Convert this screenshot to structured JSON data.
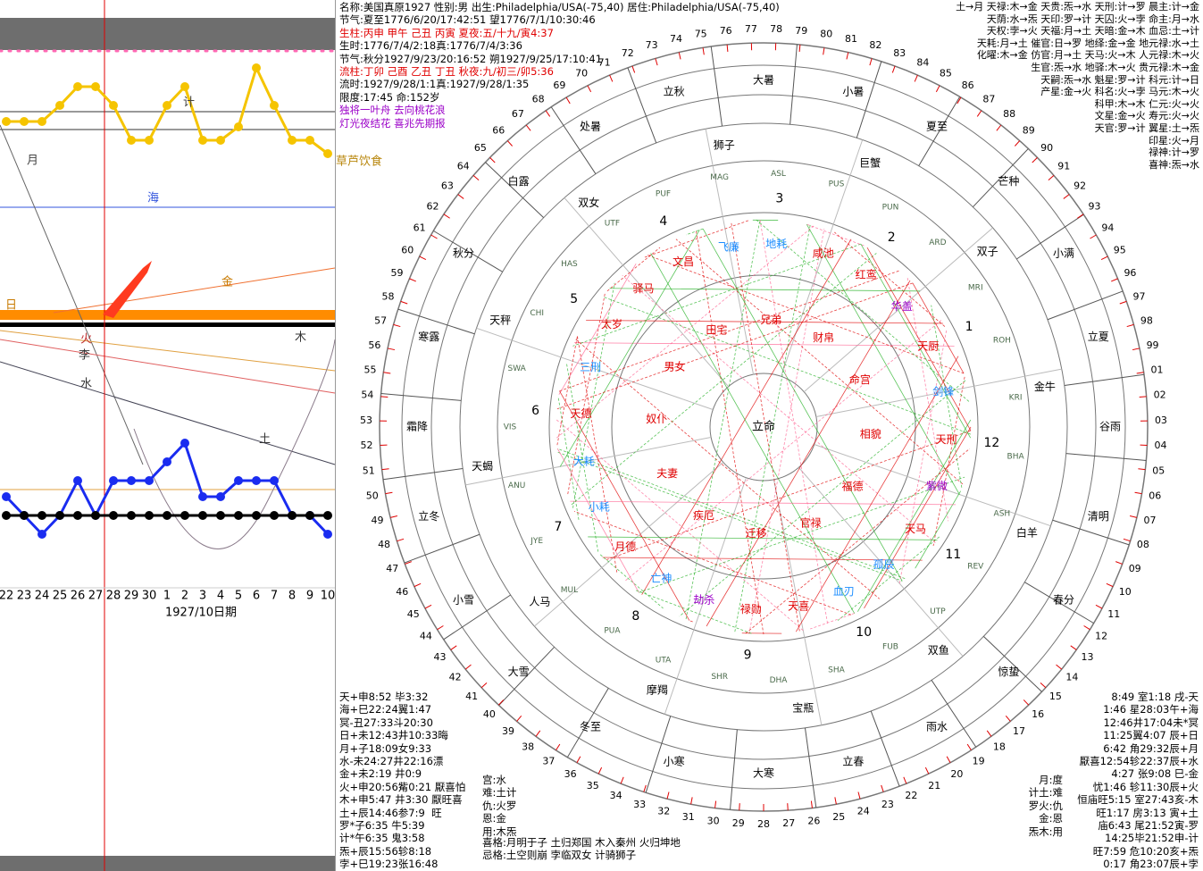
{
  "left_chart": {
    "type": "line",
    "categories": [
      "22",
      "23",
      "24",
      "25",
      "26",
      "27",
      "28",
      "29",
      "30",
      "1",
      "2",
      "3",
      "4",
      "5",
      "6",
      "7",
      "8",
      "9",
      "10"
    ],
    "xlabel": "1927/10日期",
    "ylim": [
      0,
      100
    ],
    "series": [
      {
        "color": "#f5c400",
        "values": [
          84,
          84,
          84,
          87,
          90.5,
          90.5,
          87,
          80.5,
          80.5,
          87,
          90.5,
          80.5,
          80.5,
          83,
          94,
          87,
          80.5,
          80.5,
          78
        ]
      },
      {
        "color": "#1a2cf0",
        "values": [
          14,
          10.5,
          7,
          10.5,
          17,
          10.5,
          17,
          17,
          17,
          20.5,
          24,
          14,
          14,
          17,
          17,
          17,
          10.5,
          10.5,
          7
        ]
      },
      {
        "color": "#000000",
        "values": [
          10.5,
          10.5,
          10.5,
          10.5,
          10.5,
          10.5,
          10.5,
          10.5,
          10.5,
          10.5,
          10.5,
          10.5,
          10.5,
          10.5,
          10.5,
          10.5,
          10.5,
          10.5,
          10.5
        ]
      }
    ],
    "annotations": [
      "月",
      "计",
      "海",
      "金",
      "日",
      "木",
      "火",
      "李",
      "水",
      "土",
      "草芦饮食"
    ]
  },
  "header": {
    "lines": [
      {
        "text": "名称:美国真原1927 性别:男 出生:Philadelphia/USA(-75,40) 居住:Philadelphia/USA(-75,40)",
        "color": "#000000"
      },
      {
        "text": "节气:夏至1776/6/20/17:42:51 望1776/7/1/10:30:46",
        "color": "#000000"
      },
      {
        "text": "生柱:丙申 甲午 己丑 丙寅 夏夜:五/十九/寅4:37",
        "color": "#e00000"
      },
      {
        "text": "生时:1776/7/4/2:18真:1776/7/4/3:36",
        "color": "#000000"
      },
      {
        "text": "节气:秋分1927/9/23/20:16:52 朔1927/9/25/17:10:41",
        "color": "#000000"
      },
      {
        "text": "流柱:丁卯 己酉 乙丑 丁丑 秋夜:九/初三/卯5:36",
        "color": "#e00000"
      },
      {
        "text": "流时:1927/9/28/1:1真:1927/9/28/1:35",
        "color": "#000000"
      },
      {
        "text": "限度:17:45 命:152岁",
        "color": "#000000"
      },
      {
        "text": "独将一叶舟 去向桃花浪",
        "color": "#9b00c8"
      },
      {
        "text": "灯光夜结花 喜兆先期报",
        "color": "#9b00c8"
      }
    ]
  },
  "top_right": {
    "lines": [
      "土→月 天禄:木→金 天贵:炁→水 天刑:计→罗 晨主:计→金",
      "天荫:水→炁 天印:罗→计 天囚:火→孛 命主:月→水",
      "天权:孛→火 天福:月→土 天暗:金→木 血忌:土→计",
      "天耗:月→土 催官:日→罗 地绎:金→金 地元禄:水→土",
      "化曜:木→金 仿官:月→土 天马:火→木 人元禄:木→火",
      "生官:炁→水 地驿:木→火 贵元禄:木→金",
      "天嗣:炁→水 魁星:罗→计 科元:计→日",
      "产星:金→火 科名:火→孛 马元:木→火",
      "科甲:木→木 仁元:火→火",
      "文星:金→火 寿元:火→火",
      "天官:罗→计 翼星:土→炁",
      "印星:火→月",
      "禄神:计→罗",
      "喜神:炁→水"
    ]
  },
  "wheel": {
    "degrees": [
      "28",
      "29",
      "30",
      "31",
      "32",
      "33",
      "34",
      "35",
      "36",
      "37",
      "38",
      "39",
      "40",
      "41",
      "42",
      "43",
      "44",
      "45",
      "46",
      "47",
      "48",
      "49",
      "50",
      "51",
      "52",
      "53",
      "54",
      "55",
      "56",
      "57",
      "58",
      "59",
      "60",
      "61",
      "62",
      "63",
      "64",
      "65",
      "66",
      "67",
      "68",
      "69",
      "70",
      "71",
      "72",
      "73",
      "74",
      "75",
      "76",
      "77",
      "78",
      "79",
      "80",
      "81",
      "82",
      "83",
      "84",
      "85",
      "86",
      "87",
      "88",
      "89",
      "90",
      "91",
      "92",
      "93",
      "94",
      "95",
      "96",
      "97",
      "98",
      "99",
      "01",
      "02",
      "03",
      "04",
      "05",
      "06",
      "07",
      "08",
      "09",
      "10",
      "11",
      "12",
      "13",
      "14",
      "15",
      "16",
      "17",
      "18",
      "19",
      "20",
      "21",
      "22",
      "23",
      "24",
      "25",
      "26",
      "27"
    ],
    "terms": [
      "冬至",
      "小寒",
      "大寒",
      "立春",
      "雨水",
      "惊蛰",
      "春分",
      "清明",
      "谷雨",
      "立夏",
      "小满",
      "芒种",
      "夏至",
      "小暑",
      "大暑",
      "立秋",
      "处暑",
      "白露",
      "秋分",
      "寒露",
      "霜降",
      "立冬",
      "小雪",
      "大雪"
    ],
    "nakshatras": [
      "ASH",
      "BHA",
      "KRI",
      "ROH",
      "MRI",
      "ARD",
      "PUN",
      "PUS",
      "ASL",
      "MAG",
      "PUF",
      "UTF",
      "HAS",
      "CHI",
      "SWA",
      "VIS",
      "ANU",
      "JYE",
      "MUL",
      "PUA",
      "UTA",
      "SHR",
      "DHA",
      "SHA",
      "FUB",
      "UTP",
      "REV"
    ],
    "signs": [
      "狮子",
      "巨蟹",
      "双子",
      "金牛",
      "白羊",
      "双鱼",
      "宝瓶",
      "摩羯",
      "人马",
      "天蝎",
      "天秤",
      "双女"
    ],
    "houses": [
      1,
      2,
      3,
      4,
      5,
      6,
      7,
      8,
      9,
      10,
      11,
      12
    ],
    "stars": [
      {
        "name": "天刑",
        "color": "#e00000"
      },
      {
        "name": "紫微",
        "color": "#9b00c8"
      },
      {
        "name": "天马",
        "color": "#e00000"
      },
      {
        "name": "孤辰",
        "color": "#1a8cff"
      },
      {
        "name": "血刃",
        "color": "#1a8cff"
      },
      {
        "name": "天喜",
        "color": "#e00000"
      },
      {
        "name": "禄勋",
        "color": "#e00000"
      },
      {
        "name": "劫杀",
        "color": "#9b00c8"
      },
      {
        "name": "亡神",
        "color": "#1a8cff"
      },
      {
        "name": "月德",
        "color": "#e00000"
      },
      {
        "name": "小耗",
        "color": "#1a8cff"
      },
      {
        "name": "大耗",
        "color": "#1a8cff"
      },
      {
        "name": "天德",
        "color": "#e00000"
      },
      {
        "name": "三刑",
        "color": "#1a8cff"
      },
      {
        "name": "太岁",
        "color": "#e00000"
      },
      {
        "name": "驿马",
        "color": "#e00000"
      },
      {
        "name": "文昌",
        "color": "#e00000"
      },
      {
        "name": "飞廉",
        "color": "#1a8cff"
      },
      {
        "name": "地耗",
        "color": "#1a8cff"
      },
      {
        "name": "咸池",
        "color": "#e00000"
      },
      {
        "name": "红鸾",
        "color": "#e00000"
      },
      {
        "name": "华盖",
        "color": "#9b00c8"
      },
      {
        "name": "天厨",
        "color": "#e00000"
      },
      {
        "name": "剑锋",
        "color": "#1a8cff"
      }
    ],
    "palaces": [
      "命宫",
      "财帛",
      "兄弟",
      "田宅",
      "男女",
      "奴仆",
      "夫妻",
      "疾厄",
      "迁移",
      "官禄",
      "福德",
      "相貌"
    ],
    "center": "立命"
  },
  "bottom_left": {
    "lines": [
      "天+申8:52 毕3:32",
      "海+巳22:24翼1:47",
      "冥-丑27:33斗20:30",
      "日+未12:43井10:33晦",
      "月+子18:09女9:33",
      "水-未24:27井22:16漂",
      "金+未2:19 井0:9",
      "火+申20:56觜0:21 厭喜怕",
      "木+申5:47 井3:30 厭旺喜",
      "土+辰14:46参7:9  旺",
      "罗*子6:35 牛5:39",
      "计*午6:35 鬼3:58",
      "炁+辰15:56轸8:18",
      "孛+巳19:23张16:48"
    ],
    "middle": [
      "宫:水",
      "难:土计",
      "仇:火罗",
      "恩:金",
      "用:木炁"
    ],
    "patterns": [
      "喜格:月明于子 土归郑国 木入秦州 火归坤地",
      "忌格:土空则崩 孛临双女 计骑狮子"
    ]
  },
  "bottom_right": {
    "lines": [
      "8:49 室1:18 戌-天",
      "1:46 星28:03午+海",
      "12:46井17:04未*冥",
      "11:25翼4:07 辰+日",
      "6:42 角29:32辰+月",
      "厭喜12:54轸22:37辰+水",
      "4:27 张9:08 巳-金",
      "忧1:46 轸11:30辰+火",
      "恒庙旺5:15 室27:43亥-木",
      "旺1:17 房3:13 寅+土",
      "庙6:43 尾21:52寅-罗",
      "14:25毕21:52申-计",
      "旺7:59 危10:20亥+炁",
      "0:17 角23:07辰+孛"
    ],
    "middle": [
      "月:度",
      "计土:难",
      "罗火:仇",
      "金:恩",
      "炁木:用"
    ]
  }
}
